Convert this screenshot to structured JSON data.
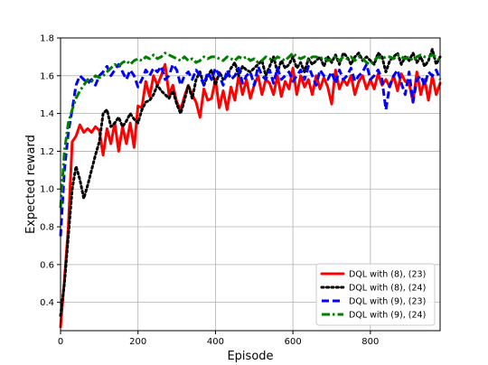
{
  "chart_data": {
    "type": "line",
    "title": "",
    "xlabel": "Episode",
    "ylabel": "Expected reward",
    "xlim": [
      0,
      980
    ],
    "ylim": [
      0.25,
      1.8
    ],
    "xticks": [
      0,
      200,
      400,
      600,
      800
    ],
    "xtick_labels": [
      "0",
      "200",
      "400",
      "600",
      "800"
    ],
    "yticks": [
      0.4,
      0.6,
      0.8,
      1.0,
      1.2,
      1.4,
      1.6,
      1.8
    ],
    "ytick_labels": [
      "0.4",
      "0.6",
      "0.8",
      "1.0",
      "1.2",
      "1.4",
      "1.6",
      "1.8"
    ],
    "grid": true,
    "legend_position": "bottom-right",
    "series": [
      {
        "name": "DQL with (8), (23)",
        "color": "#ff0000",
        "dash": "solid",
        "x": [
          0,
          10,
          20,
          30,
          40,
          50,
          60,
          70,
          80,
          90,
          100,
          110,
          120,
          130,
          140,
          150,
          160,
          170,
          180,
          190,
          200,
          210,
          220,
          230,
          240,
          250,
          260,
          270,
          280,
          290,
          300,
          310,
          320,
          330,
          340,
          350,
          360,
          370,
          380,
          390,
          400,
          410,
          420,
          430,
          440,
          450,
          460,
          470,
          480,
          490,
          500,
          510,
          520,
          530,
          540,
          550,
          560,
          570,
          580,
          590,
          600,
          610,
          620,
          630,
          640,
          650,
          660,
          670,
          680,
          690,
          700,
          710,
          720,
          730,
          740,
          750,
          760,
          770,
          780,
          790,
          800,
          810,
          820,
          830,
          840,
          850,
          860,
          870,
          880,
          890,
          900,
          910,
          920,
          930,
          940,
          950,
          960,
          970,
          980
        ],
        "y": [
          0.27,
          0.52,
          0.8,
          1.25,
          1.28,
          1.34,
          1.3,
          1.32,
          1.3,
          1.33,
          1.31,
          1.18,
          1.32,
          1.24,
          1.35,
          1.2,
          1.33,
          1.24,
          1.35,
          1.22,
          1.44,
          1.43,
          1.57,
          1.49,
          1.6,
          1.55,
          1.6,
          1.66,
          1.5,
          1.55,
          1.46,
          1.42,
          1.49,
          1.55,
          1.5,
          1.46,
          1.38,
          1.53,
          1.47,
          1.48,
          1.58,
          1.43,
          1.52,
          1.42,
          1.54,
          1.47,
          1.6,
          1.5,
          1.58,
          1.48,
          1.55,
          1.6,
          1.5,
          1.58,
          1.56,
          1.5,
          1.6,
          1.49,
          1.57,
          1.53,
          1.64,
          1.5,
          1.6,
          1.54,
          1.58,
          1.5,
          1.6,
          1.53,
          1.59,
          1.54,
          1.45,
          1.63,
          1.53,
          1.58,
          1.55,
          1.6,
          1.5,
          1.57,
          1.6,
          1.53,
          1.58,
          1.53,
          1.61,
          1.55,
          1.58,
          1.54,
          1.6,
          1.52,
          1.61,
          1.57,
          1.56,
          1.46,
          1.62,
          1.5,
          1.58,
          1.47,
          1.6,
          1.5,
          1.56
        ]
      },
      {
        "name": "DQL with (8), (24)",
        "color": "#000000",
        "dash": "dotted",
        "x": [
          0,
          10,
          20,
          30,
          40,
          50,
          60,
          70,
          80,
          90,
          100,
          110,
          120,
          130,
          140,
          150,
          160,
          170,
          180,
          190,
          200,
          210,
          220,
          230,
          240,
          250,
          260,
          270,
          280,
          290,
          300,
          310,
          320,
          330,
          340,
          350,
          360,
          370,
          380,
          390,
          400,
          410,
          420,
          430,
          440,
          450,
          460,
          470,
          480,
          490,
          500,
          510,
          520,
          530,
          540,
          550,
          560,
          570,
          580,
          590,
          600,
          610,
          620,
          630,
          640,
          650,
          660,
          670,
          680,
          690,
          700,
          710,
          720,
          730,
          740,
          750,
          760,
          770,
          780,
          790,
          800,
          810,
          820,
          830,
          840,
          850,
          860,
          870,
          880,
          890,
          900,
          910,
          920,
          930,
          940,
          950,
          960,
          970,
          980
        ],
        "y": [
          0.33,
          0.5,
          0.75,
          1.0,
          1.12,
          1.05,
          0.95,
          1.02,
          1.1,
          1.18,
          1.25,
          1.4,
          1.42,
          1.33,
          1.35,
          1.38,
          1.33,
          1.36,
          1.4,
          1.37,
          1.35,
          1.42,
          1.46,
          1.47,
          1.5,
          1.55,
          1.52,
          1.5,
          1.48,
          1.52,
          1.45,
          1.4,
          1.47,
          1.55,
          1.48,
          1.58,
          1.62,
          1.55,
          1.6,
          1.63,
          1.55,
          1.62,
          1.58,
          1.6,
          1.64,
          1.67,
          1.6,
          1.65,
          1.63,
          1.62,
          1.64,
          1.66,
          1.68,
          1.6,
          1.65,
          1.7,
          1.62,
          1.68,
          1.64,
          1.66,
          1.7,
          1.64,
          1.67,
          1.62,
          1.69,
          1.66,
          1.68,
          1.7,
          1.65,
          1.7,
          1.67,
          1.71,
          1.66,
          1.72,
          1.7,
          1.66,
          1.7,
          1.72,
          1.68,
          1.7,
          1.68,
          1.66,
          1.72,
          1.7,
          1.62,
          1.68,
          1.7,
          1.72,
          1.66,
          1.7,
          1.68,
          1.72,
          1.67,
          1.7,
          1.65,
          1.68,
          1.74,
          1.66,
          1.7
        ]
      },
      {
        "name": "DQL with (9), (23)",
        "color": "#0000ff",
        "dash": "dashed",
        "x": [
          0,
          10,
          20,
          30,
          40,
          50,
          60,
          70,
          80,
          90,
          100,
          110,
          120,
          130,
          140,
          150,
          160,
          170,
          180,
          190,
          200,
          210,
          220,
          230,
          240,
          250,
          260,
          270,
          280,
          290,
          300,
          310,
          320,
          330,
          340,
          350,
          360,
          370,
          380,
          390,
          400,
          410,
          420,
          430,
          440,
          450,
          460,
          470,
          480,
          490,
          500,
          510,
          520,
          530,
          540,
          550,
          560,
          570,
          580,
          590,
          600,
          610,
          620,
          630,
          640,
          650,
          660,
          670,
          680,
          690,
          700,
          710,
          720,
          730,
          740,
          750,
          760,
          770,
          780,
          790,
          800,
          810,
          820,
          830,
          840,
          850,
          860,
          870,
          880,
          890,
          900,
          910,
          920,
          930,
          940,
          950,
          960,
          970,
          980
        ],
        "y": [
          0.75,
          1.1,
          1.3,
          1.42,
          1.55,
          1.6,
          1.58,
          1.56,
          1.58,
          1.55,
          1.6,
          1.62,
          1.65,
          1.6,
          1.63,
          1.66,
          1.62,
          1.58,
          1.63,
          1.6,
          1.54,
          1.58,
          1.63,
          1.6,
          1.64,
          1.62,
          1.65,
          1.58,
          1.6,
          1.66,
          1.63,
          1.55,
          1.6,
          1.62,
          1.58,
          1.63,
          1.6,
          1.55,
          1.62,
          1.58,
          1.64,
          1.6,
          1.55,
          1.63,
          1.58,
          1.6,
          1.64,
          1.56,
          1.6,
          1.62,
          1.55,
          1.65,
          1.6,
          1.58,
          1.63,
          1.56,
          1.64,
          1.58,
          1.6,
          1.62,
          1.57,
          1.6,
          1.63,
          1.58,
          1.65,
          1.6,
          1.55,
          1.63,
          1.6,
          1.58,
          1.62,
          1.56,
          1.63,
          1.58,
          1.6,
          1.64,
          1.57,
          1.6,
          1.62,
          1.66,
          1.58,
          1.6,
          1.63,
          1.58,
          1.42,
          1.55,
          1.6,
          1.63,
          1.56,
          1.5,
          1.62,
          1.46,
          1.58,
          1.6,
          1.55,
          1.62,
          1.6,
          1.63,
          1.58
        ]
      },
      {
        "name": "DQL with (9), (24)",
        "color": "#008000",
        "dash": "dashdot",
        "x": [
          0,
          10,
          20,
          30,
          40,
          50,
          60,
          70,
          80,
          90,
          100,
          110,
          120,
          130,
          140,
          150,
          160,
          170,
          180,
          190,
          200,
          210,
          220,
          230,
          240,
          250,
          260,
          270,
          280,
          290,
          300,
          310,
          320,
          330,
          340,
          350,
          360,
          370,
          380,
          390,
          400,
          410,
          420,
          430,
          440,
          450,
          460,
          470,
          480,
          490,
          500,
          510,
          520,
          530,
          540,
          550,
          560,
          570,
          580,
          590,
          600,
          610,
          620,
          630,
          640,
          650,
          660,
          670,
          680,
          690,
          700,
          710,
          720,
          730,
          740,
          750,
          760,
          770,
          780,
          790,
          800,
          810,
          820,
          830,
          840,
          850,
          860,
          870,
          880,
          890,
          900,
          910,
          920,
          930,
          940,
          950,
          960,
          970,
          980
        ],
        "y": [
          0.9,
          1.2,
          1.35,
          1.42,
          1.48,
          1.52,
          1.55,
          1.58,
          1.57,
          1.6,
          1.59,
          1.6,
          1.62,
          1.64,
          1.66,
          1.65,
          1.67,
          1.68,
          1.66,
          1.68,
          1.69,
          1.68,
          1.7,
          1.69,
          1.71,
          1.69,
          1.7,
          1.72,
          1.71,
          1.7,
          1.69,
          1.68,
          1.7,
          1.68,
          1.69,
          1.67,
          1.68,
          1.7,
          1.69,
          1.7,
          1.7,
          1.69,
          1.68,
          1.7,
          1.69,
          1.68,
          1.7,
          1.69,
          1.7,
          1.68,
          1.69,
          1.67,
          1.68,
          1.7,
          1.69,
          1.68,
          1.7,
          1.69,
          1.68,
          1.7,
          1.72,
          1.7,
          1.69,
          1.7,
          1.68,
          1.7,
          1.7,
          1.69,
          1.7,
          1.68,
          1.69,
          1.7,
          1.68,
          1.7,
          1.69,
          1.7,
          1.68,
          1.7,
          1.69,
          1.67,
          1.66,
          1.68,
          1.7,
          1.69,
          1.7,
          1.7,
          1.69,
          1.71,
          1.7,
          1.69,
          1.7,
          1.68,
          1.7,
          1.71,
          1.7,
          1.7,
          1.71,
          1.7,
          1.68
        ]
      }
    ]
  }
}
